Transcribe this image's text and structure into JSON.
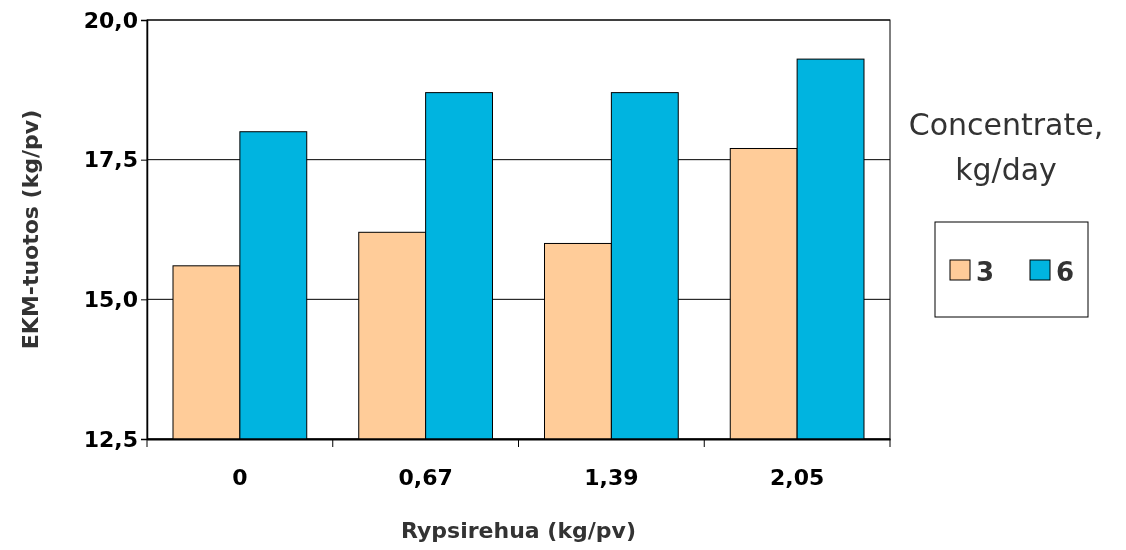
{
  "chart_data": {
    "type": "bar",
    "xlabel": "Rypsirehua (kg/pv)",
    "ylabel": "EKM-tuotos (kg/pv)",
    "legend_title": "Concentrate, kg/day",
    "categories": [
      "0",
      "0,67",
      "1,39",
      "2,05"
    ],
    "series": [
      {
        "name": "3",
        "color": "#ffcc99",
        "values": [
          15.6,
          16.2,
          16.0,
          17.7
        ]
      },
      {
        "name": "6",
        "color": "#00b4e0",
        "values": [
          18.0,
          18.7,
          18.7,
          19.3
        ]
      }
    ],
    "ylim": [
      12.5,
      20
    ],
    "yticks": [
      {
        "value": 12.5,
        "label": "12,5"
      },
      {
        "value": 15,
        "label": "15,0"
      },
      {
        "value": 17.5,
        "label": "17,5"
      },
      {
        "value": 20,
        "label": "20,0"
      }
    ],
    "grid": "y",
    "legend": "right"
  }
}
